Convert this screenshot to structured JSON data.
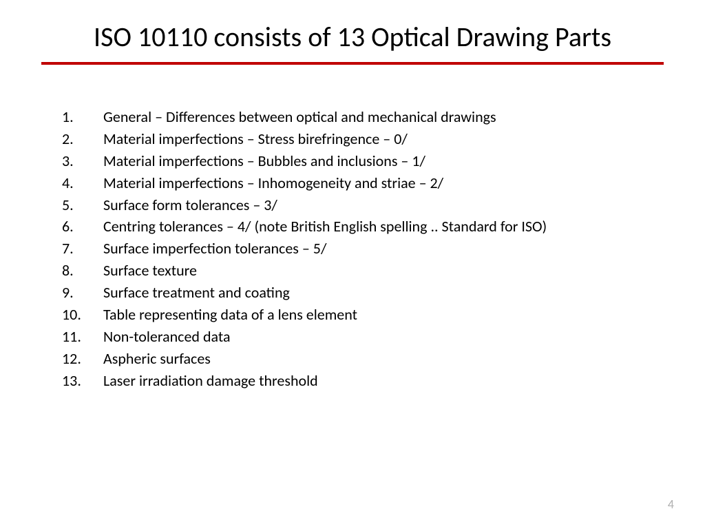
{
  "slide": {
    "title": "ISO 10110 consists of 13 Optical Drawing Parts",
    "divider_color": "#c00000",
    "divider_width": 4,
    "items": [
      "General – Differences between optical and mechanical drawings",
      "Material imperfections – Stress birefringence – 0/",
      "Material imperfections – Bubbles and inclusions – 1/",
      "Material imperfections – Inhomogeneity and striae – 2/",
      "Surface form tolerances – 3/",
      "Centring tolerances – 4/  (note British English spelling .. Standard for ISO)",
      "Surface imperfection tolerances – 5/",
      "Surface texture",
      "Surface treatment and coating",
      "Table representing data of a lens element",
      "Non-toleranced data",
      "Aspheric surfaces",
      "Laser irradiation damage threshold"
    ],
    "page_number": "4",
    "background_color": "#ffffff",
    "title_color": "#000000",
    "title_fontsize": 40,
    "body_fontsize": 22,
    "body_color": "#000000",
    "page_number_color": "#b0b0b0"
  }
}
